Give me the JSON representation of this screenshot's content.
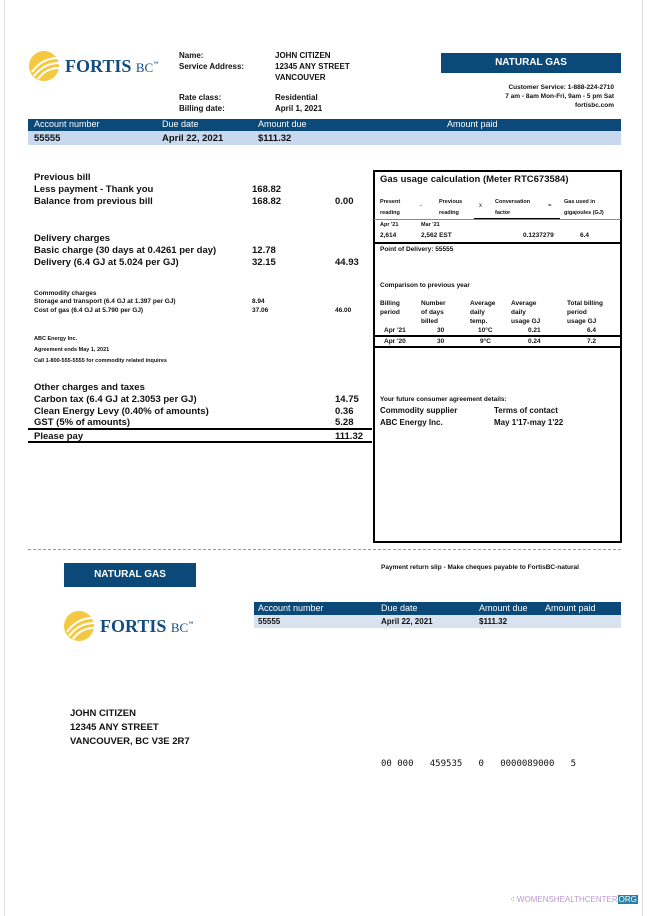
{
  "brand": {
    "name": "FORTIS",
    "suffix": "BC",
    "tm": "™",
    "colors": {
      "primary": "#0b4a78",
      "light": "#c8d9ef",
      "logo": "#f5c842"
    }
  },
  "customer": {
    "name_label": "Name:",
    "name": "JOHN CITIZEN",
    "address_label": "Service Address:",
    "address1": "12345 ANY STREET",
    "address2": "VANCOUVER",
    "rate_label": "Rate class:",
    "rate": "Residential",
    "billing_label": "Billing date:",
    "billing_date": "April 1, 2021"
  },
  "service_badge": "NATURAL GAS",
  "contact": {
    "line1": "Customer Service: 1-888-224-2710",
    "line2": "7 am - 8am Mon-Fri, 9am - 5 pm Sat",
    "line3": "fortisbc.com"
  },
  "summary": {
    "headers": [
      "Account number",
      "Due date",
      "Amount due",
      "Amount paid"
    ],
    "values": [
      "55555",
      "April 22, 2021",
      "$111.32",
      ""
    ]
  },
  "charges": {
    "previous": {
      "title": "Previous bill",
      "less": "Less payment - Thank you",
      "less_amt": "168.82",
      "balance": "Balance from previous bill",
      "balance_amt": "168.82",
      "balance_total": "0.00"
    },
    "delivery": {
      "title": "Delivery charges",
      "basic": "Basic charge (30 days at 0.4261 per day)",
      "basic_amt": "12.78",
      "del": "Delivery (6.4 GJ at 5.024 per GJ)",
      "del_amt": "32.15",
      "total": "44.93"
    },
    "commodity": {
      "title": "Commodity charges",
      "storage": "Storage and transport (6.4 GJ at 1.397 per GJ)",
      "storage_amt": "8.94",
      "cost": "Cost of gas (6.4 GJ at 5.790 per GJ)",
      "cost_amt": "37.06",
      "total": "46.00"
    },
    "supplier": {
      "line1": "ABC Energy Inc.",
      "line2": "Agreement ends May 1, 2021",
      "line3": "Call 1-800-555-5555 for commodity related inquires"
    },
    "other": {
      "title": "Other charges and taxes",
      "carbon": "Carbon tax (6.4 GJ at 2.3053 per GJ)",
      "carbon_amt": "14.75",
      "levy": "Clean Energy Levy (0.40% of amounts)",
      "levy_amt": "0.36",
      "gst": "GST (5% of amounts)",
      "gst_amt": "5.28"
    },
    "please_pay": "Please pay",
    "please_pay_amt": "111.32"
  },
  "usage": {
    "title": "Gas usage calculation (Meter RTC673584)",
    "h": {
      "present": [
        "Present",
        "reading"
      ],
      "minus": "-",
      "previous": [
        "Previous",
        "reading"
      ],
      "x": "x",
      "factor": [
        "Conversation",
        "factor"
      ],
      "eq": "=",
      "gj": [
        "Gas used in",
        "gigajoules (GJ)"
      ]
    },
    "present_date": "Apr '21",
    "previous_date": "Mar '21",
    "present": "2,614",
    "previous": "2,562 EST",
    "factor": "0.1237279",
    "gj": "6.4",
    "pod": "Point of Delivery: 55555",
    "comparison_title": "Comparison to previous year",
    "cols": [
      [
        "Billing",
        "period"
      ],
      [
        "Number",
        "of days",
        "billed"
      ],
      [
        "Average",
        "daily",
        "temp."
      ],
      [
        "Average",
        "daily",
        "usage GJ"
      ],
      [
        "Total billing",
        "period",
        "usage GJ"
      ]
    ],
    "rows": [
      [
        "Apr '21",
        "30",
        "10°C",
        "0.21",
        "6.4"
      ],
      [
        "Apr '20",
        "30",
        "9°C",
        "0.24",
        "7.2"
      ]
    ],
    "future": {
      "title": "Your future consumer agreement details:",
      "supplier_label": "Commodity supplier",
      "terms_label": "Terms of contact",
      "supplier": "ABC Energy Inc.",
      "terms": "May 1'17-may 1'22"
    }
  },
  "slip": {
    "badge": "NATURAL GAS",
    "note": "Payment return slip - Make cheques payable to FortisBC-natural",
    "headers": [
      "Account number",
      "Due date",
      "Amount due",
      "Amount paid"
    ],
    "values": [
      "55555",
      "April 22, 2021",
      "$111.32",
      ""
    ],
    "address": [
      "JOHN CITIZEN",
      "12345 ANY STREET",
      "VANCOUVER, BC V3E 2R7"
    ],
    "code": "00 000   459535   0   0000089000   5"
  },
  "watermark": {
    "text": "WOMENSHEALTHCENTER",
    "tld": "ORG"
  }
}
